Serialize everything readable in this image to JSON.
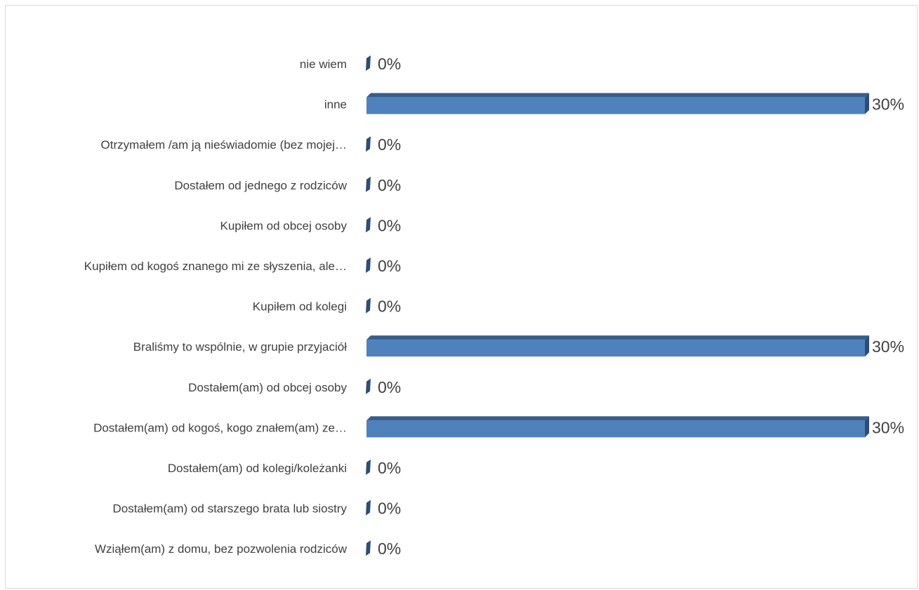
{
  "chart_data": {
    "type": "bar",
    "orientation": "horizontal",
    "style": "3d-clustered",
    "categories": [
      "nie wiem",
      "inne",
      "Otrzymałem /am ją nieświadomie (bez mojej…",
      "Dostałem od jednego z rodziców",
      "Kupiłem od obcej osoby",
      "Kupiłem od kogoś znanego mi ze słyszenia, ale…",
      "Kupiłem od kolegi",
      "Braliśmy to wspólnie, w grupie przyjaciół",
      "Dostałem(am) od obcej osoby",
      "Dostałem(am) od kogoś, kogo znałem(am) ze…",
      "Dostałem(am) od kolegi/koleżanki",
      "Dostałem(am) od starszego brata lub siostry",
      "Wziąłem(am) z domu, bez pozwolenia rodziców"
    ],
    "values": [
      0,
      30,
      0,
      0,
      0,
      0,
      0,
      30,
      0,
      30,
      0,
      0,
      0
    ],
    "data_labels": [
      "0%",
      "30%",
      "0%",
      "0%",
      "0%",
      "0%",
      "0%",
      "30%",
      "0%",
      "30%",
      "0%",
      "0%",
      "0%"
    ],
    "xlim": [
      0,
      30
    ],
    "unit": "%",
    "legend": "none",
    "grid": false,
    "colors": {
      "bar_front": "#4f81bd",
      "bar_top": "#385d8a",
      "bar_side": "#2c4d75",
      "label_text": "#404040",
      "frame_border": "#d9d9d9"
    }
  }
}
